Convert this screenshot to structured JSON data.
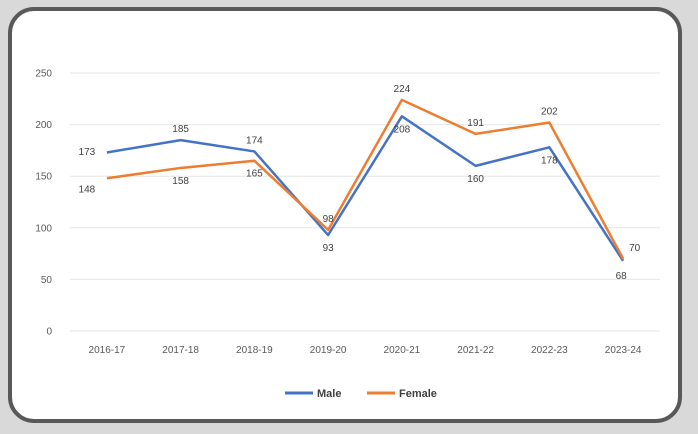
{
  "chart_data": {
    "type": "line",
    "categories": [
      "2016-17",
      "2017-18",
      "2018-19",
      "2019-20",
      "2020-21",
      "2021-22",
      "2022-23",
      "2023-24"
    ],
    "series": [
      {
        "name": "Male",
        "values": [
          173,
          185,
          174,
          93,
          208,
          160,
          178,
          68
        ],
        "color": "#4472C4"
      },
      {
        "name": "Female",
        "values": [
          148,
          158,
          165,
          98,
          224,
          191,
          202,
          70
        ],
        "color": "#ED7D31"
      }
    ],
    "yticks": [
      0,
      50,
      100,
      150,
      200,
      250
    ],
    "ylim": [
      0,
      250
    ],
    "grid": true,
    "legend": "bottom",
    "title": "",
    "xlabel": "",
    "ylabel": ""
  }
}
